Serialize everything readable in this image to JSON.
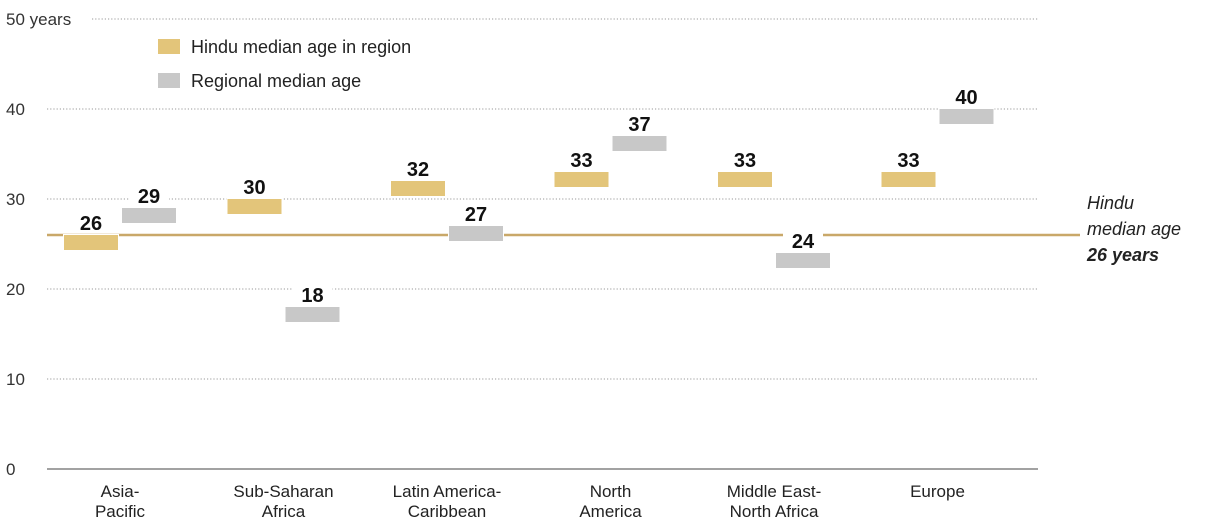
{
  "chart_data": {
    "type": "bar",
    "categories": [
      [
        "Asia-",
        "Pacific"
      ],
      [
        "Sub-Saharan",
        "Africa"
      ],
      [
        "Latin America-",
        "Caribbean"
      ],
      [
        "North",
        "America"
      ],
      [
        "Middle East-",
        "North Africa"
      ],
      [
        "Europe"
      ]
    ],
    "series": [
      {
        "name": "Hindu median age in region",
        "color": "#E3C57A",
        "values": [
          26,
          30,
          32,
          33,
          33,
          33
        ]
      },
      {
        "name": "Regional median age",
        "color": "#C8C8C8",
        "values": [
          29,
          18,
          27,
          37,
          24,
          40
        ]
      }
    ],
    "ylim": [
      0,
      50
    ],
    "yticks": [
      0,
      10,
      20,
      30,
      40,
      50
    ],
    "ytick_labels": [
      "0",
      "10",
      "20",
      "30",
      "40",
      "50 years"
    ],
    "grid": true,
    "legend_position": "top-left",
    "reference_line": {
      "value": 26,
      "color": "#C9A869",
      "label_lines": [
        "Hindu",
        "median age",
        "26 years"
      ]
    }
  }
}
